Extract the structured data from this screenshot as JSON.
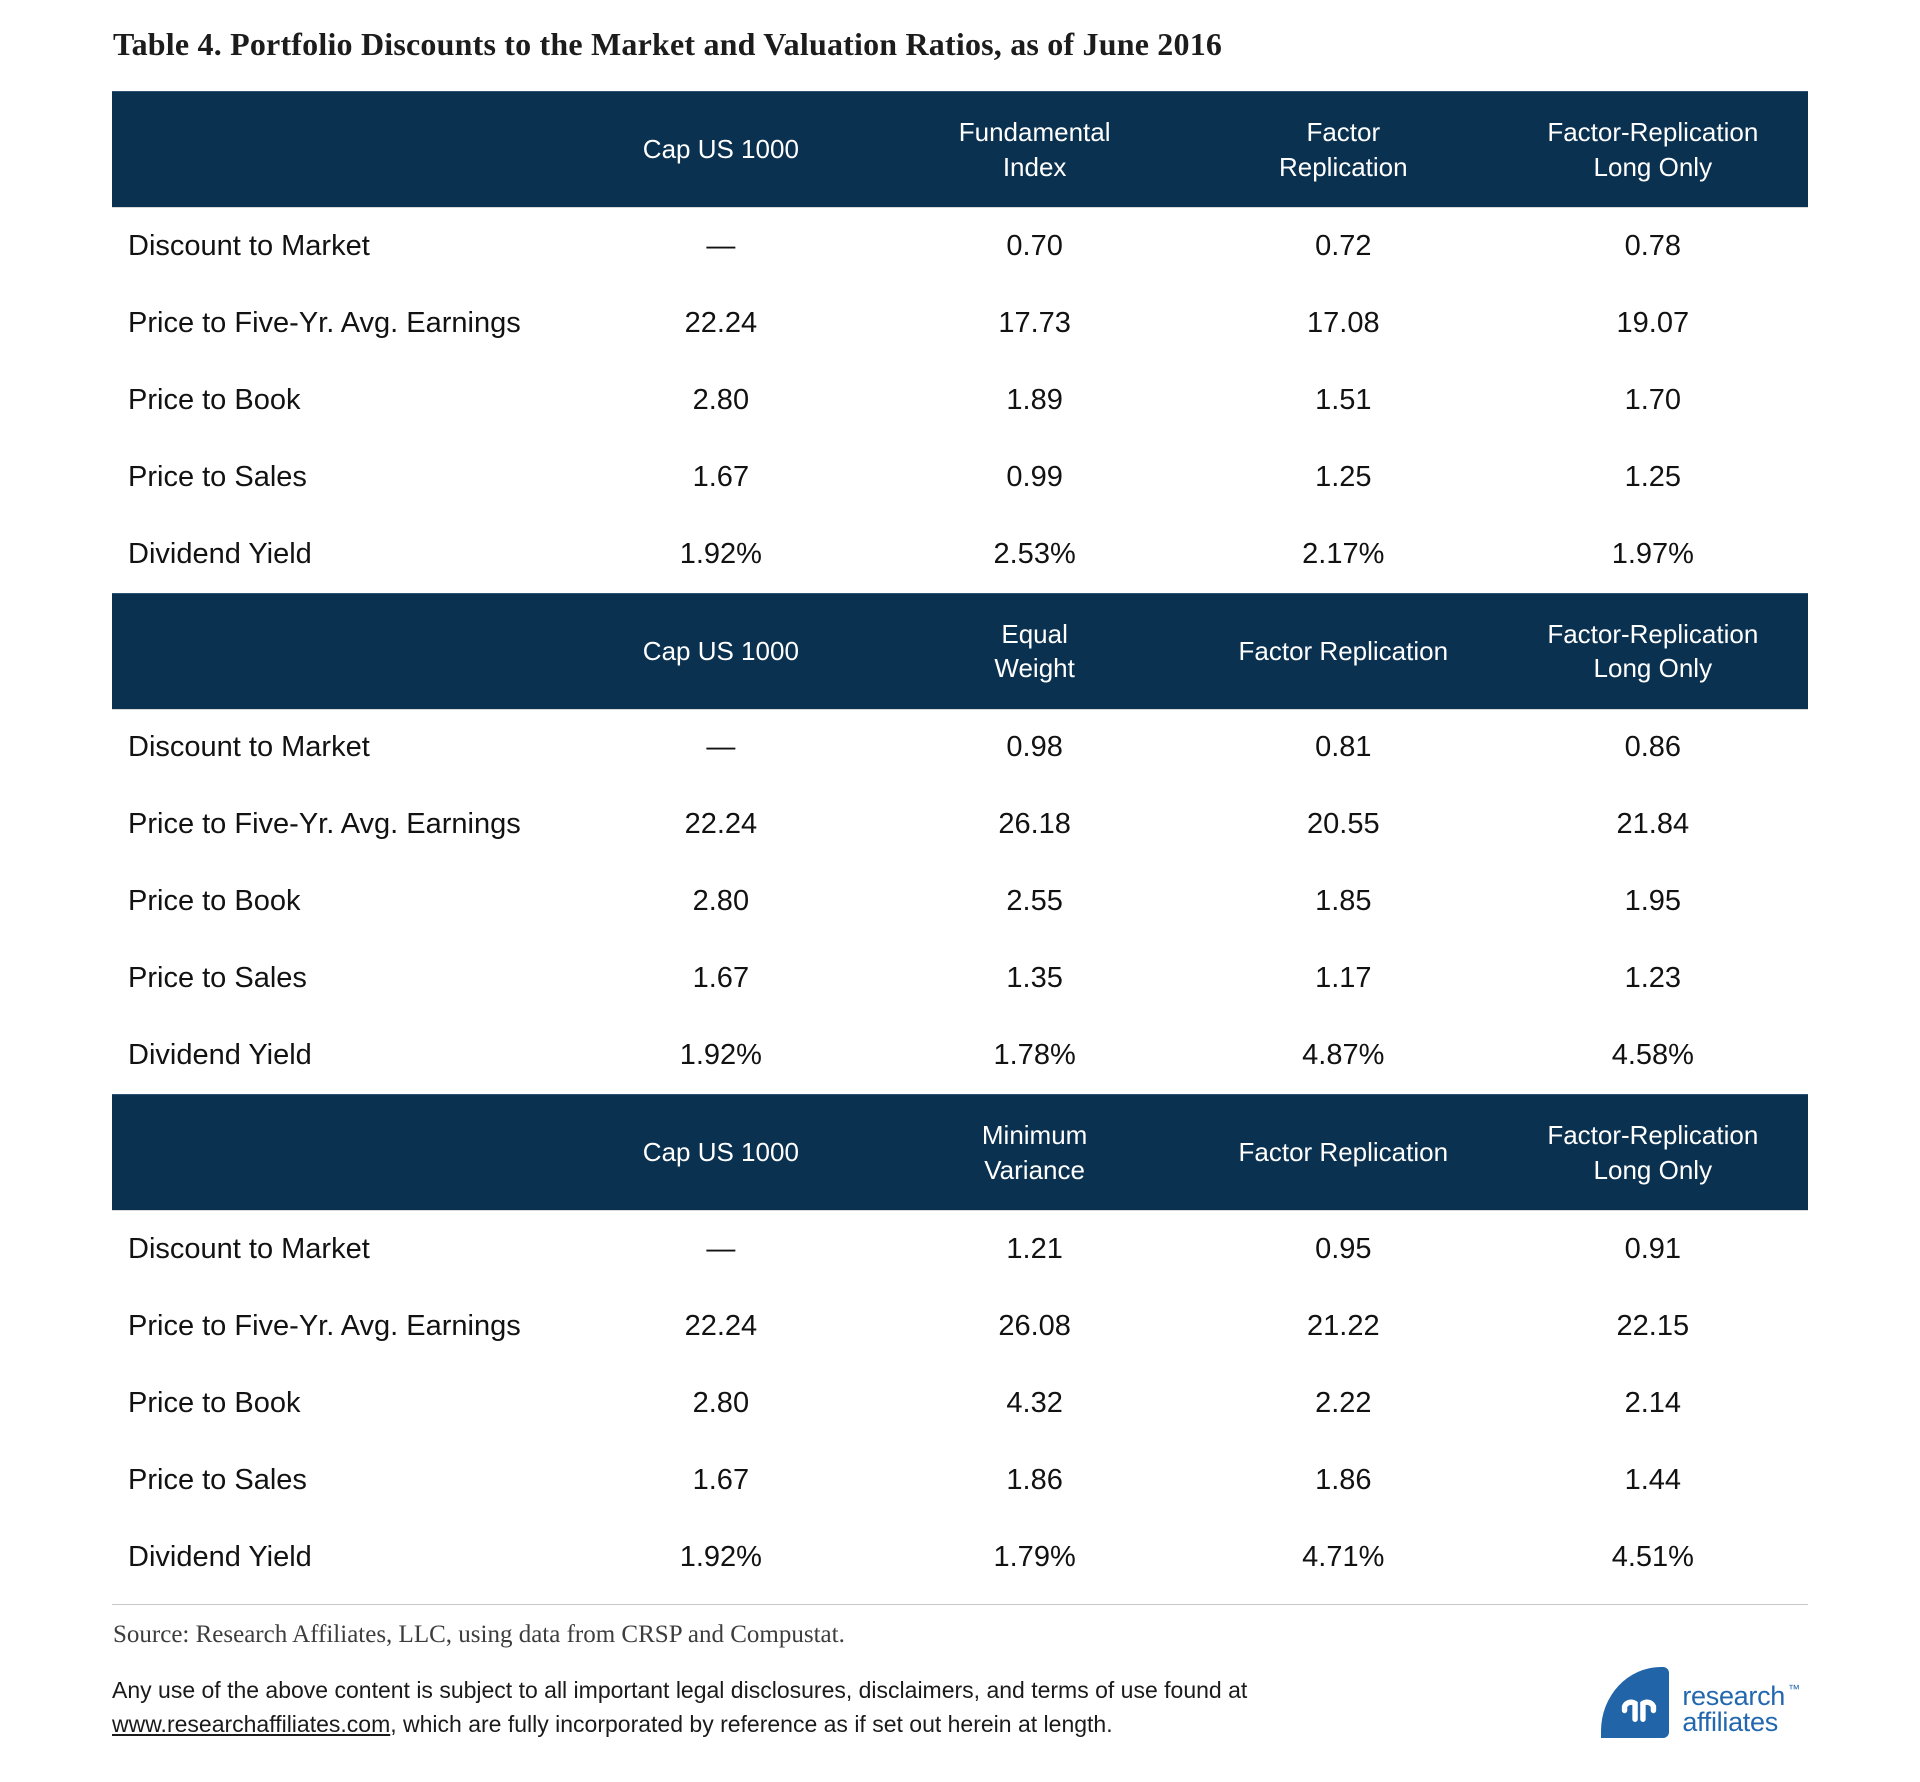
{
  "title": "Table 4. Portfolio Discounts to the Market and Valuation Ratios, as of June 2016",
  "tables": [
    {
      "columns": [
        "",
        "Cap US 1000",
        "Fundamental\nIndex",
        "Factor\nReplication",
        "Factor-Replication\nLong Only"
      ],
      "rows": [
        [
          "Discount to Market",
          "—",
          "0.70",
          "0.72",
          "0.78"
        ],
        [
          "Price to Five-Yr. Avg. Earnings",
          "22.24",
          "17.73",
          "17.08",
          "19.07"
        ],
        [
          "Price to Book",
          "2.80",
          "1.89",
          "1.51",
          "1.70"
        ],
        [
          "Price to Sales",
          "1.67",
          "0.99",
          "1.25",
          "1.25"
        ],
        [
          "Dividend Yield",
          "1.92%",
          "2.53%",
          "2.17%",
          "1.97%"
        ]
      ]
    },
    {
      "columns": [
        "",
        "Cap US 1000",
        "Equal\nWeight",
        "Factor Replication",
        "Factor-Replication\nLong Only"
      ],
      "rows": [
        [
          "Discount to Market",
          "—",
          "0.98",
          "0.81",
          "0.86"
        ],
        [
          "Price to Five-Yr. Avg. Earnings",
          "22.24",
          "26.18",
          "20.55",
          "21.84"
        ],
        [
          "Price to Book",
          "2.80",
          "2.55",
          "1.85",
          "1.95"
        ],
        [
          "Price to Sales",
          "1.67",
          "1.35",
          "1.17",
          "1.23"
        ],
        [
          "Dividend Yield",
          "1.92%",
          "1.78%",
          "4.87%",
          "4.58%"
        ]
      ]
    },
    {
      "columns": [
        "",
        "Cap US 1000",
        "Minimum\nVariance",
        "Factor Replication",
        "Factor-Replication\nLong Only"
      ],
      "rows": [
        [
          "Discount to Market",
          "—",
          "1.21",
          "0.95",
          "0.91"
        ],
        [
          "Price to Five-Yr. Avg. Earnings",
          "22.24",
          "26.08",
          "21.22",
          "22.15"
        ],
        [
          "Price to Book",
          "2.80",
          "4.32",
          "2.22",
          "2.14"
        ],
        [
          "Price to Sales",
          "1.67",
          "1.86",
          "1.86",
          "1.44"
        ],
        [
          "Dividend Yield",
          "1.92%",
          "1.79%",
          "4.71%",
          "4.51%"
        ]
      ]
    }
  ],
  "footer": {
    "source": "Source: Research Affiliates, LLC, using data from CRSP and Compustat.",
    "legal_before": "Any use of the above content is subject to all important legal disclosures, disclaimers, and terms of use found at ",
    "legal_link": "www.researchaffiliates.com",
    "legal_after": ", which are fully incorporated by reference as if set out herein at length."
  },
  "logo": {
    "line1": "research",
    "line2": "affiliates",
    "trademark": "™"
  },
  "colors": {
    "header_bg": "#0a3150",
    "logo_blue": "#2165a8",
    "logo_text_blue": "#2368ae"
  }
}
